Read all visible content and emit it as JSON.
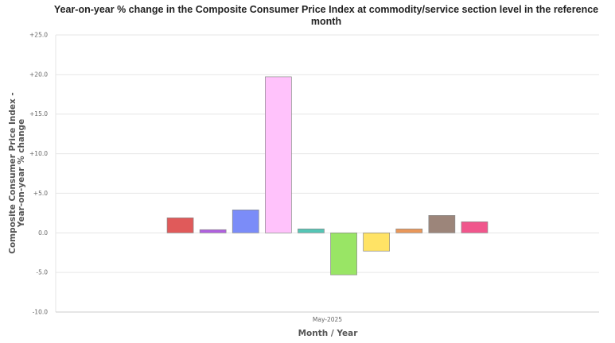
{
  "chart_data": {
    "type": "bar",
    "title": "Year-on-year % change in the Composite Consumer Price Index at commodity/service section level in the reference month",
    "xlabel": "Month / Year",
    "ylabel": "Composite Consumer Price Index - Year-on-year % change",
    "categories": [
      "May-2025"
    ],
    "ylim": [
      -10,
      25
    ],
    "yticks": [
      -10,
      -5,
      0,
      5,
      10,
      15,
      20,
      25
    ],
    "ytick_labels": [
      "-10.0",
      "-5.0",
      "0.0",
      "+5.0",
      "+10.0",
      "+15.0",
      "+20.0",
      "+25.0"
    ],
    "grid": true,
    "legend": "none",
    "series": [
      {
        "values": [
          1.9
        ],
        "color": "#e05a5a"
      },
      {
        "values": [
          0.4
        ],
        "color": "#b060e0"
      },
      {
        "values": [
          2.9
        ],
        "color": "#7b8cf8"
      },
      {
        "values": [
          19.7
        ],
        "color": "#ffc2fb"
      },
      {
        "values": [
          0.5
        ],
        "color": "#55c5b5"
      },
      {
        "values": [
          -5.3
        ],
        "color": "#99e565"
      },
      {
        "values": [
          -2.3
        ],
        "color": "#ffe365"
      },
      {
        "values": [
          0.5
        ],
        "color": "#e9975a"
      },
      {
        "values": [
          2.2
        ],
        "color": "#9c857a"
      },
      {
        "values": [
          1.4
        ],
        "color": "#f0568c"
      }
    ]
  }
}
